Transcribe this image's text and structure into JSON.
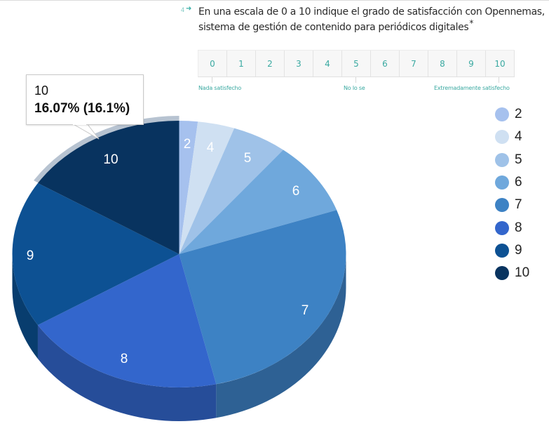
{
  "question": {
    "number": "4",
    "arrow_icon": "arrow-right-icon",
    "text": "En una escala de 0 a 10 indique el grado de satisfacción con Opennemas, sistema de gestión de contenido para periódicos digitales",
    "required_mark": "*"
  },
  "scale": {
    "options": [
      "0",
      "1",
      "2",
      "3",
      "4",
      "5",
      "6",
      "7",
      "8",
      "9",
      "10"
    ],
    "labels": {
      "low": "Nada satisfecho",
      "mid": "No lo se",
      "high": "Extremadamente satisfecho"
    },
    "accent_color": "#3aa9a1"
  },
  "tooltip": {
    "category": "10",
    "value": "16.07% (16.1%)"
  },
  "chart_data": {
    "type": "pie",
    "style": "3d",
    "title": "",
    "categories": [
      "2",
      "4",
      "5",
      "6",
      "7",
      "8",
      "9",
      "10"
    ],
    "values": [
      1.79,
      3.57,
      5.36,
      8.93,
      26.79,
      19.64,
      17.86,
      16.07
    ],
    "units": "%",
    "colors": [
      "#a6c1ee",
      "#cfe0f2",
      "#9fc2e8",
      "#6fa8dc",
      "#3d82c4",
      "#3366cc",
      "#0d5193",
      "#08335f"
    ],
    "side_colors": [
      "#8aa3cc",
      "#b0c1d3",
      "#87a6c7",
      "#5f90bd",
      "#2e6194",
      "#264d99",
      "#083d6e",
      "#052546"
    ],
    "legend_position": "right",
    "highlighted": "10",
    "start_angle_deg": 0
  }
}
